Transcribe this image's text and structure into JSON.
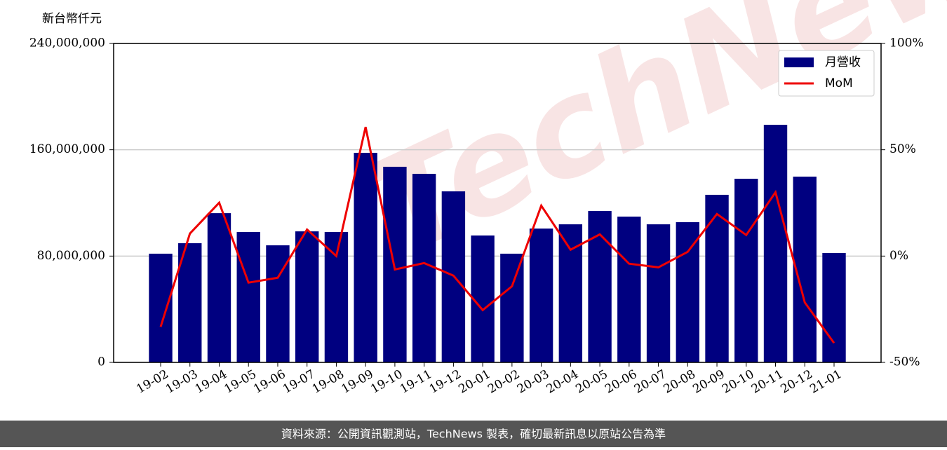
{
  "chart_data": {
    "type": "bar-line",
    "y_label": "新台幣仟元",
    "categories": [
      "19-02",
      "19-03",
      "19-04",
      "19-05",
      "19-06",
      "19-07",
      "19-08",
      "19-09",
      "19-10",
      "19-11",
      "19-12",
      "20-01",
      "20-02",
      "20-03",
      "20-04",
      "20-05",
      "20-06",
      "20-07",
      "20-08",
      "20-09",
      "20-10",
      "20-11",
      "20-12",
      "21-01"
    ],
    "series": [
      {
        "name": "月營收",
        "type": "bar",
        "color": "#000080",
        "values": [
          81800000,
          89700000,
          112300000,
          98100000,
          88100000,
          98600000,
          98100000,
          157700000,
          147200000,
          141900000,
          128700000,
          95500000,
          81800000,
          100700000,
          103900000,
          113900000,
          109700000,
          103900000,
          105500000,
          126100000,
          138200000,
          178800000,
          139800000,
          82300000
        ]
      },
      {
        "name": "MoM",
        "type": "line",
        "axis": "y2",
        "color": "#ee0000",
        "values": [
          -33.3,
          10.6,
          25.1,
          -12.5,
          -10.2,
          12.5,
          0,
          60.7,
          -6.3,
          -3.3,
          -9.2,
          -25.4,
          -14.2,
          23.7,
          3,
          10.2,
          -3.6,
          -5.3,
          2,
          19.8,
          9.9,
          30,
          -21.8,
          -40.9
        ]
      }
    ],
    "ylim": [
      0,
      240000000
    ],
    "yticks": [
      0,
      {
        "value": 80000000,
        "label": "80,000,000"
      },
      {
        "value": 160000000,
        "label": "160,000,000"
      },
      {
        "value": 240000000,
        "label": "240,000,000"
      }
    ],
    "y2lim": [
      -50,
      100
    ],
    "y2ticks": [
      {
        "value": -50,
        "label": "-50%"
      },
      {
        "value": 0,
        "label": "0%"
      },
      {
        "value": 50,
        "label": "50%"
      },
      {
        "value": 100,
        "label": "100%"
      }
    ],
    "grid": true,
    "legend": "upper right",
    "watermark": "TechNews",
    "footer": "資料來源：公開資訊觀測站，TechNews 製表，確切最新訊息以原站公告為準"
  }
}
